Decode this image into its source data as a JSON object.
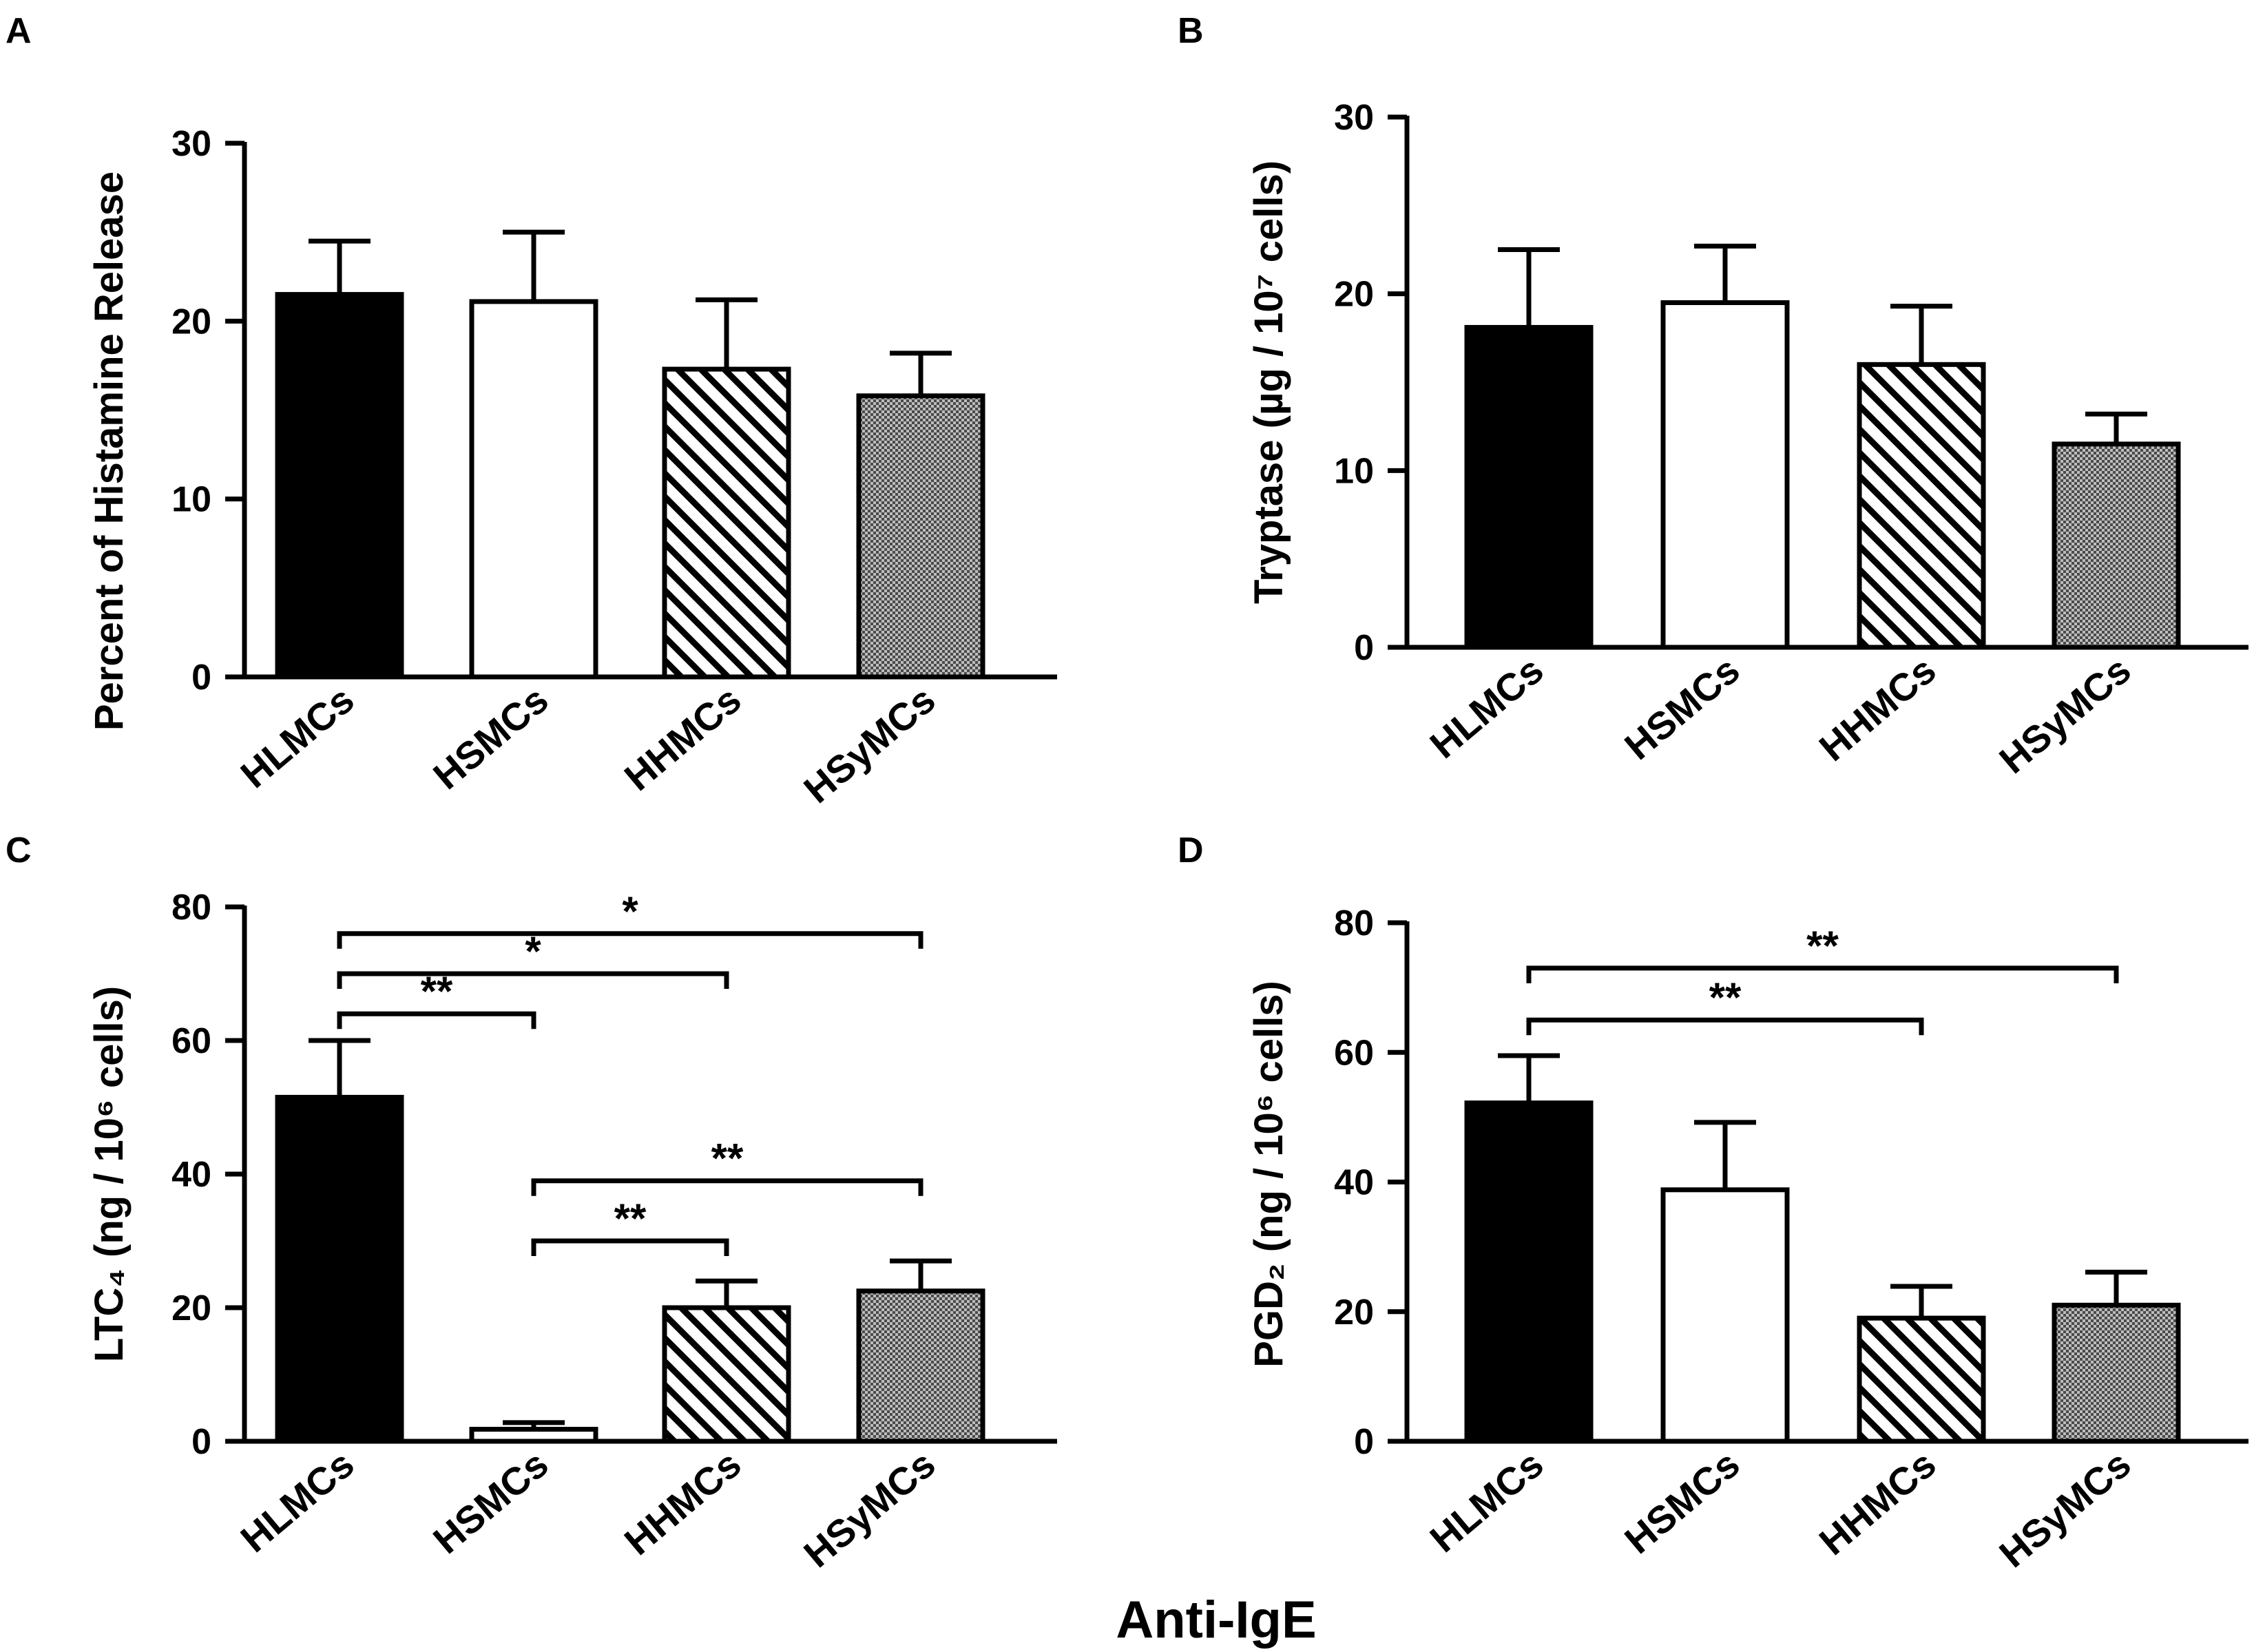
{
  "figure": {
    "shared_xlabel": "Anti-IgE",
    "colors": {
      "ink": "#000000",
      "background": "#ffffff",
      "stipple": "#888888"
    }
  },
  "chart_data": [
    {
      "panel": "A",
      "type": "bar",
      "title": "",
      "xlabel": "",
      "ylabel": "Percent  of  Histamine  Release",
      "categories": [
        "HLMCs",
        "HSMCs",
        "HHMCs",
        "HSyMCs"
      ],
      "fills": [
        "solid",
        "open",
        "hatched",
        "stippled"
      ],
      "values": [
        21.5,
        21.1,
        17.3,
        15.8
      ],
      "errors": [
        3.0,
        3.9,
        3.9,
        2.4
      ],
      "ylim": [
        0,
        30
      ],
      "yticks": [
        0,
        10,
        20,
        30
      ],
      "grid": false,
      "significance": []
    },
    {
      "panel": "B",
      "type": "bar",
      "title": "",
      "xlabel": "",
      "ylabel": "Tryptase  (µg / 10⁷  cells)",
      "categories": [
        "HLMCs",
        "HSMCs",
        "HHMCs",
        "HSyMCs"
      ],
      "fills": [
        "solid",
        "open",
        "hatched",
        "stippled"
      ],
      "values": [
        18.1,
        19.5,
        16.0,
        11.5
      ],
      "errors": [
        4.4,
        3.2,
        3.3,
        1.7
      ],
      "ylim": [
        0,
        30
      ],
      "yticks": [
        0,
        10,
        20,
        30
      ],
      "grid": false,
      "significance": []
    },
    {
      "panel": "C",
      "type": "bar",
      "title": "",
      "xlabel": "",
      "ylabel": "LTC₄  (ng / 10⁶  cells)",
      "categories": [
        "HLMCs",
        "HSMCs",
        "HHMCs",
        "HSyMCs"
      ],
      "fills": [
        "solid",
        "open",
        "hatched",
        "stippled"
      ],
      "values": [
        51.5,
        1.8,
        20.0,
        22.5
      ],
      "errors": [
        8.5,
        1.0,
        4.0,
        4.5
      ],
      "ylim": [
        0,
        80
      ],
      "yticks": [
        0,
        20,
        40,
        60,
        80
      ],
      "grid": false,
      "significance": [
        {
          "from": "HLMCs",
          "to": "HSyMCs",
          "label": "*",
          "level": 76
        },
        {
          "from": "HLMCs",
          "to": "HHMCs",
          "label": "*",
          "level": 70
        },
        {
          "from": "HLMCs",
          "to": "HSMCs",
          "label": "**",
          "level": 64
        },
        {
          "from": "HSMCs",
          "to": "HSyMCs",
          "label": "**",
          "level": 39
        },
        {
          "from": "HSMCs",
          "to": "HHMCs",
          "label": "**",
          "level": 30
        }
      ]
    },
    {
      "panel": "D",
      "type": "bar",
      "title": "",
      "xlabel": "",
      "ylabel": "PGD₂  (ng / 10⁶  cells)",
      "categories": [
        "HLMCs",
        "HSMCs",
        "HHMCs",
        "HSyMCs"
      ],
      "fills": [
        "solid",
        "open",
        "hatched",
        "stippled"
      ],
      "values": [
        52.2,
        38.8,
        19.0,
        21.0
      ],
      "errors": [
        7.3,
        10.4,
        4.9,
        5.1
      ],
      "ylim": [
        0,
        80
      ],
      "yticks": [
        0,
        20,
        40,
        60,
        80
      ],
      "grid": false,
      "significance": [
        {
          "from": "HLMCs",
          "to": "HSyMCs",
          "label": "**",
          "level": 73
        },
        {
          "from": "HLMCs",
          "to": "HHMCs",
          "label": "**",
          "level": 65
        }
      ]
    }
  ]
}
